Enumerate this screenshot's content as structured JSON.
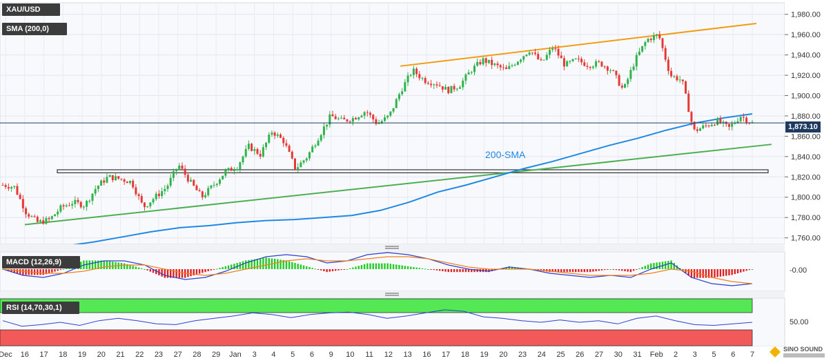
{
  "symbol": "XAU/USD",
  "indicators": {
    "sma": "SMA (200,0)",
    "sma_annotation": "200-SMA",
    "macd": "MACD (12,26,9)",
    "macd_value": "-0.00",
    "rsi": "RSI (14,70,30,1)",
    "rsi_value": "50.00"
  },
  "current_price": "1,873.10",
  "colors": {
    "up": "#2fb34a",
    "down": "#e53935",
    "sma": "#1e88e5",
    "resistance": "#f39c12",
    "support": "#4caf50",
    "macd_line": "#2c3ecc",
    "signal_line": "#f07f1a",
    "rsi_overbought": "#55e855",
    "rsi_oversold": "#f25a5a"
  },
  "chart_data": {
    "type": "candlestick",
    "ylim": [
      1755,
      1990
    ],
    "y_ticks": [
      "1,760.00",
      "1,780.00",
      "1,800.00",
      "1,820.00",
      "1,840.00",
      "1,860.00",
      "1,880.00",
      "1,900.00",
      "1,920.00",
      "1,940.00",
      "1,960.00",
      "1,980.00"
    ],
    "x_ticks": [
      "Dec",
      "16",
      "17",
      "18",
      "19",
      "20",
      "21",
      "22",
      "23",
      "27",
      "28",
      "29",
      "Jan",
      "3",
      "4",
      "5",
      "6",
      "9",
      "10",
      "11",
      "12",
      "13",
      "16",
      "17",
      "18",
      "19",
      "20",
      "23",
      "24",
      "25",
      "26",
      "27",
      "30",
      "31",
      "Feb",
      "2",
      "3",
      "5",
      "6",
      "7"
    ],
    "close_path": [
      1812,
      1810,
      1785,
      1775,
      1778,
      1790,
      1795,
      1792,
      1810,
      1820,
      1818,
      1815,
      1790,
      1800,
      1810,
      1832,
      1815,
      1800,
      1812,
      1825,
      1830,
      1850,
      1842,
      1865,
      1855,
      1828,
      1840,
      1860,
      1880,
      1875,
      1878,
      1885,
      1872,
      1880,
      1905,
      1925,
      1915,
      1912,
      1905,
      1910,
      1925,
      1935,
      1930,
      1925,
      1935,
      1945,
      1932,
      1948,
      1930,
      1935,
      1930,
      1932,
      1925,
      1905,
      1935,
      1955,
      1960,
      1920,
      1915,
      1865,
      1870,
      1875,
      1868,
      1880,
      1873
    ],
    "horizontal_zone": [
      1824,
      1827
    ],
    "current_line": 1873.1,
    "resistance_line": {
      "from": [
        1929,
        1971
      ]
    },
    "support_line": {
      "from": [
        1773,
        1852
      ]
    },
    "sma_points": [
      1752,
      1756,
      1761,
      1766,
      1770,
      1772,
      1775,
      1777,
      1778,
      1780,
      1782,
      1787,
      1795,
      1805,
      1812,
      1820,
      1828,
      1835,
      1843,
      1851,
      1858,
      1866,
      1873,
      1878,
      1882
    ],
    "macd_line_points": [
      0,
      -3,
      -4,
      -2,
      2,
      4,
      4,
      2,
      -3,
      -5,
      -4,
      -1,
      3,
      6,
      7,
      6,
      3,
      4,
      7,
      8,
      7,
      5,
      2,
      0,
      -1,
      1,
      0,
      -2,
      -3,
      -4,
      -3,
      -4,
      0,
      3,
      -4,
      -7,
      -8,
      -7
    ],
    "signal_points": [
      0,
      -1,
      -2,
      -2,
      -1,
      1,
      2,
      2,
      0,
      -2,
      -3,
      -2,
      0,
      2,
      4,
      5,
      4,
      4,
      5,
      6,
      6,
      5,
      3,
      1,
      0,
      0,
      0,
      -1,
      -2,
      -3,
      -3,
      -3,
      -2,
      0,
      -1,
      -4,
      -6,
      -7
    ],
    "rsi_points": [
      52,
      45,
      47,
      50,
      46,
      52,
      55,
      52,
      48,
      47,
      52,
      55,
      58,
      62,
      60,
      56,
      60,
      62,
      63,
      60,
      55,
      58,
      62,
      66,
      64,
      57,
      55,
      52,
      50,
      53,
      50,
      52,
      48,
      55,
      58,
      52,
      47,
      46,
      48,
      50
    ]
  }
}
